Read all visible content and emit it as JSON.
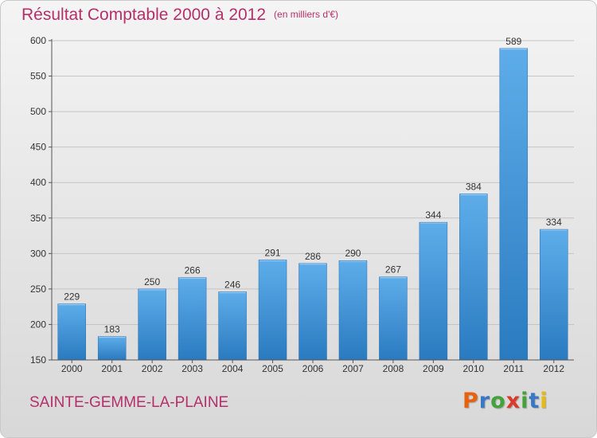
{
  "header": {
    "title": "Résultat Comptable 2000 à 2012",
    "subtitle": "(en milliers d'€)"
  },
  "footer": {
    "commune": "SAINTE-GEMME-LA-PLAINE",
    "logo_text": "Proxiti",
    "logo_colors": [
      "#e8620e",
      "#3a78c5",
      "#43a33a",
      "#d93a2b",
      "#43a33a",
      "#3a78c5",
      "#e8b90e"
    ]
  },
  "chart_data": {
    "type": "bar",
    "categories": [
      "2000",
      "2001",
      "2002",
      "2003",
      "2004",
      "2005",
      "2006",
      "2007",
      "2008",
      "2009",
      "2010",
      "2011",
      "2012"
    ],
    "values": [
      229,
      183,
      250,
      266,
      246,
      291,
      286,
      290,
      267,
      344,
      384,
      589,
      334
    ],
    "ylim": [
      150,
      600
    ],
    "yticks": [
      150,
      200,
      250,
      300,
      350,
      400,
      450,
      500,
      550,
      600
    ],
    "grid": true,
    "bar_color": "#4a9be0",
    "value_labels": true
  }
}
